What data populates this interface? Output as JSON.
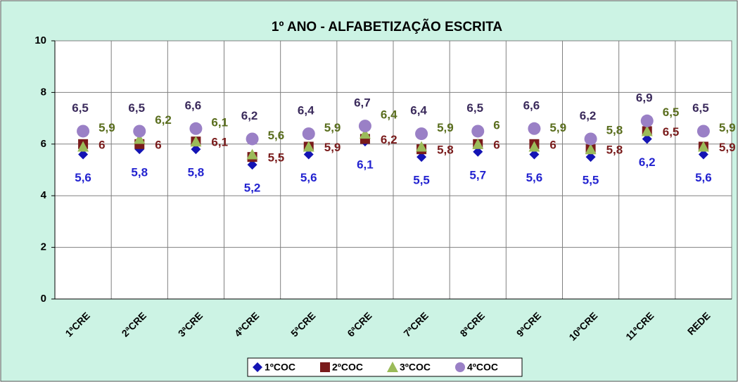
{
  "chart_data": {
    "type": "scatter",
    "title": "1º ANO - ALFABETIZAÇÃO ESCRITA",
    "categories": [
      "1ªCRE",
      "2ªCRE",
      "3ªCRE",
      "4ªCRE",
      "5ªCRE",
      "6ªCRE",
      "7ªCRE",
      "8ªCRE",
      "9ªCRE",
      "10ªCRE",
      "11ªCRE",
      "REDE"
    ],
    "series": [
      {
        "name": "1ºCOC",
        "color": "#1414b4",
        "label_color": "#2323d0",
        "marker": "diamond",
        "values": [
          5.6,
          5.8,
          5.8,
          5.2,
          5.6,
          6.1,
          5.5,
          5.7,
          5.6,
          5.5,
          6.2,
          5.6
        ],
        "value_labels": [
          "5,6",
          "5,8",
          "5,8",
          "5,2",
          "5,6",
          "6,1",
          "5,5",
          "5,7",
          "5,6",
          "5,5",
          "6,2",
          "5,6"
        ]
      },
      {
        "name": "2ºCOC",
        "color": "#7a1c1c",
        "label_color": "#7a1c1c",
        "marker": "square",
        "values": [
          6,
          6,
          6.1,
          5.5,
          5.9,
          6.2,
          5.8,
          6,
          6,
          5.8,
          6.5,
          5.9
        ],
        "value_labels": [
          "6",
          "6",
          "6,1",
          "5,5",
          "5,9",
          "6,2",
          "5,8",
          "6",
          "6",
          "5,8",
          "6,5",
          "5,9"
        ]
      },
      {
        "name": "3ºCOC",
        "color": "#9bbb59",
        "label_color": "#5a6e1e",
        "marker": "triangle",
        "values": [
          5.9,
          6.2,
          6.1,
          5.6,
          5.9,
          6.4,
          5.9,
          6,
          5.9,
          5.8,
          6.5,
          5.9
        ],
        "value_labels": [
          "5,9",
          "6,2",
          "6,1",
          "5,6",
          "5,9",
          "6,4",
          "5,9",
          "6",
          "5,9",
          "5,8",
          "6,5",
          "5,9"
        ]
      },
      {
        "name": "4ºCOC",
        "color": "#9a80c6",
        "label_color": "#3b2b5c",
        "marker": "circle",
        "values": [
          6.5,
          6.5,
          6.6,
          6.2,
          6.4,
          6.7,
          6.4,
          6.5,
          6.6,
          6.2,
          6.9,
          6.5
        ],
        "value_labels": [
          "6,5",
          "6,5",
          "6,6",
          "6,2",
          "6,4",
          "6,7",
          "6,4",
          "6,5",
          "6,6",
          "6,2",
          "6,9",
          "6,5"
        ]
      }
    ],
    "ylim": [
      0,
      10
    ],
    "yticks": [
      0,
      2,
      4,
      6,
      8,
      10
    ],
    "grid": true,
    "legend": "bottom"
  }
}
